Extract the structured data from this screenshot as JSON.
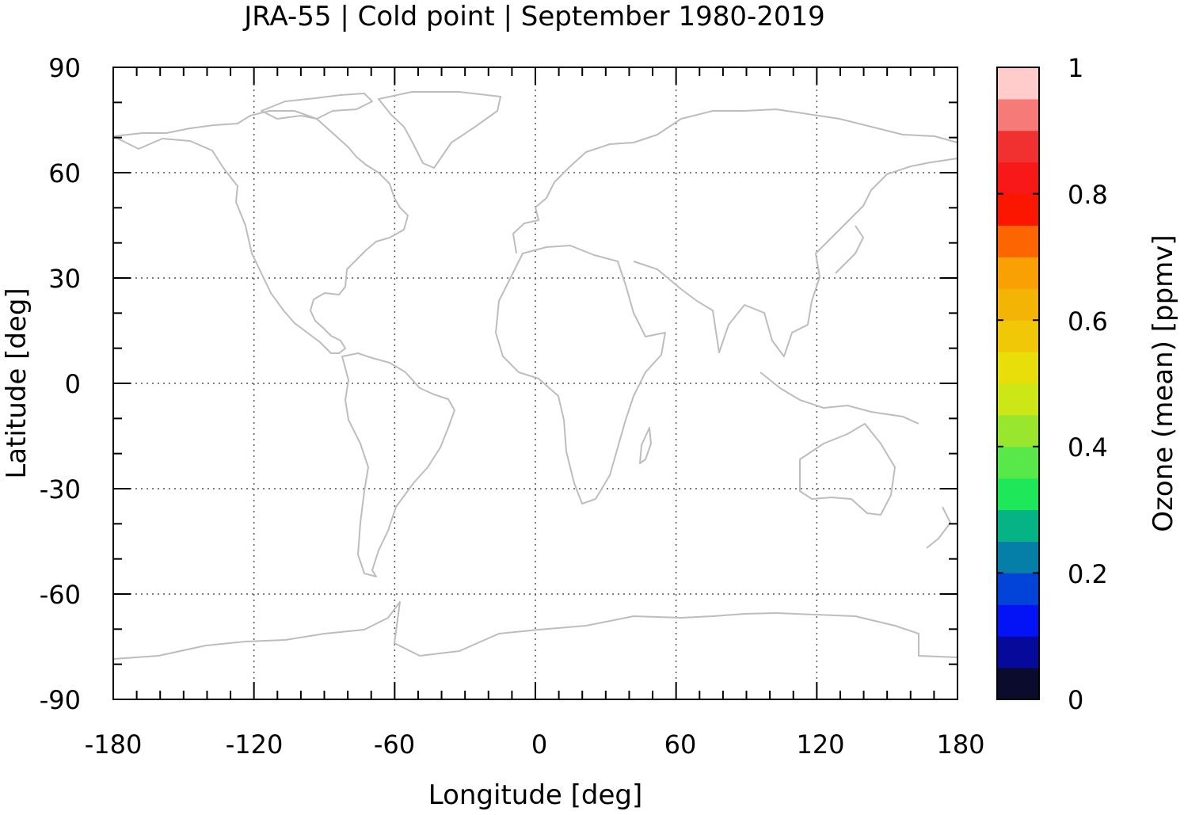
{
  "title": "JRA-55 | Cold point | September 1980-2019",
  "map": {
    "xlabel": "Longitude [deg]",
    "ylabel": "Latitude [deg]",
    "xlim": [
      -180,
      180
    ],
    "ylim": [
      -90,
      90
    ],
    "xticks": [
      -180,
      -120,
      -60,
      0,
      60,
      120,
      180
    ],
    "xtick_labels": [
      "-180",
      "-120",
      "-60",
      "0",
      "60",
      "120",
      "180"
    ],
    "yticks": [
      90,
      60,
      30,
      0,
      -30,
      -60,
      -90
    ],
    "ytick_labels": [
      "90",
      "60",
      "30",
      "0",
      "-30",
      "-60",
      "-90"
    ],
    "grid": true,
    "coastline_color": "#bdbdbd",
    "data_field": "empty"
  },
  "colorbar": {
    "label": "Ozone (mean) [ppmv]",
    "range": [
      0,
      1
    ],
    "ticks": [
      0,
      0.2,
      0.4,
      0.6,
      0.8,
      1
    ],
    "tick_labels": [
      "0",
      "0.2",
      "0.4",
      "0.6",
      "0.8",
      "1"
    ],
    "colors": [
      "#0b0b2e",
      "#050a9a",
      "#0313f5",
      "#0244d8",
      "#057fa8",
      "#06b384",
      "#1ee85a",
      "#58e84a",
      "#98e62e",
      "#cde615",
      "#e8de0a",
      "#f0c808",
      "#f4b406",
      "#f8a004",
      "#fd6402",
      "#fb1600",
      "#f81818",
      "#f13030",
      "#f57a78",
      "#ffcccc"
    ]
  }
}
